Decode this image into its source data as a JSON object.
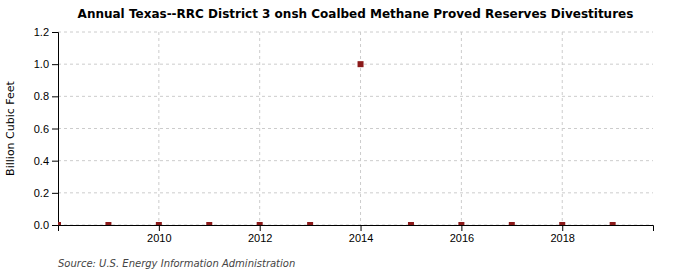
{
  "chart_data": {
    "type": "scatter",
    "title": "Annual Texas--RRC District 3 onsh Coalbed Methane Proved Reserves Divestitures",
    "y_label": "Billion Cubic Feet",
    "source": "Source: U.S. Energy Information Administration",
    "x": [
      2008,
      2009,
      2010,
      2011,
      2012,
      2013,
      2014,
      2015,
      2016,
      2017,
      2018,
      2019
    ],
    "values": [
      0.0,
      0.0,
      0.0,
      0.0,
      0.0,
      0.0,
      1.0,
      0.0,
      0.0,
      0.0,
      0.0,
      0.0
    ],
    "color": "#8B1A1A",
    "marker": "square",
    "xlim": [
      2008.0,
      2019.8
    ],
    "ylim": [
      0.0,
      1.2
    ],
    "xticks": [
      2010,
      2012,
      2014,
      2016,
      2018
    ],
    "yticks": [
      {
        "value": 0.0,
        "label": "0.0"
      },
      0.2,
      0.4,
      0.6,
      0.8,
      {
        "value": 1.0,
        "label": "1.0"
      },
      1.2
    ],
    "grid": true
  }
}
